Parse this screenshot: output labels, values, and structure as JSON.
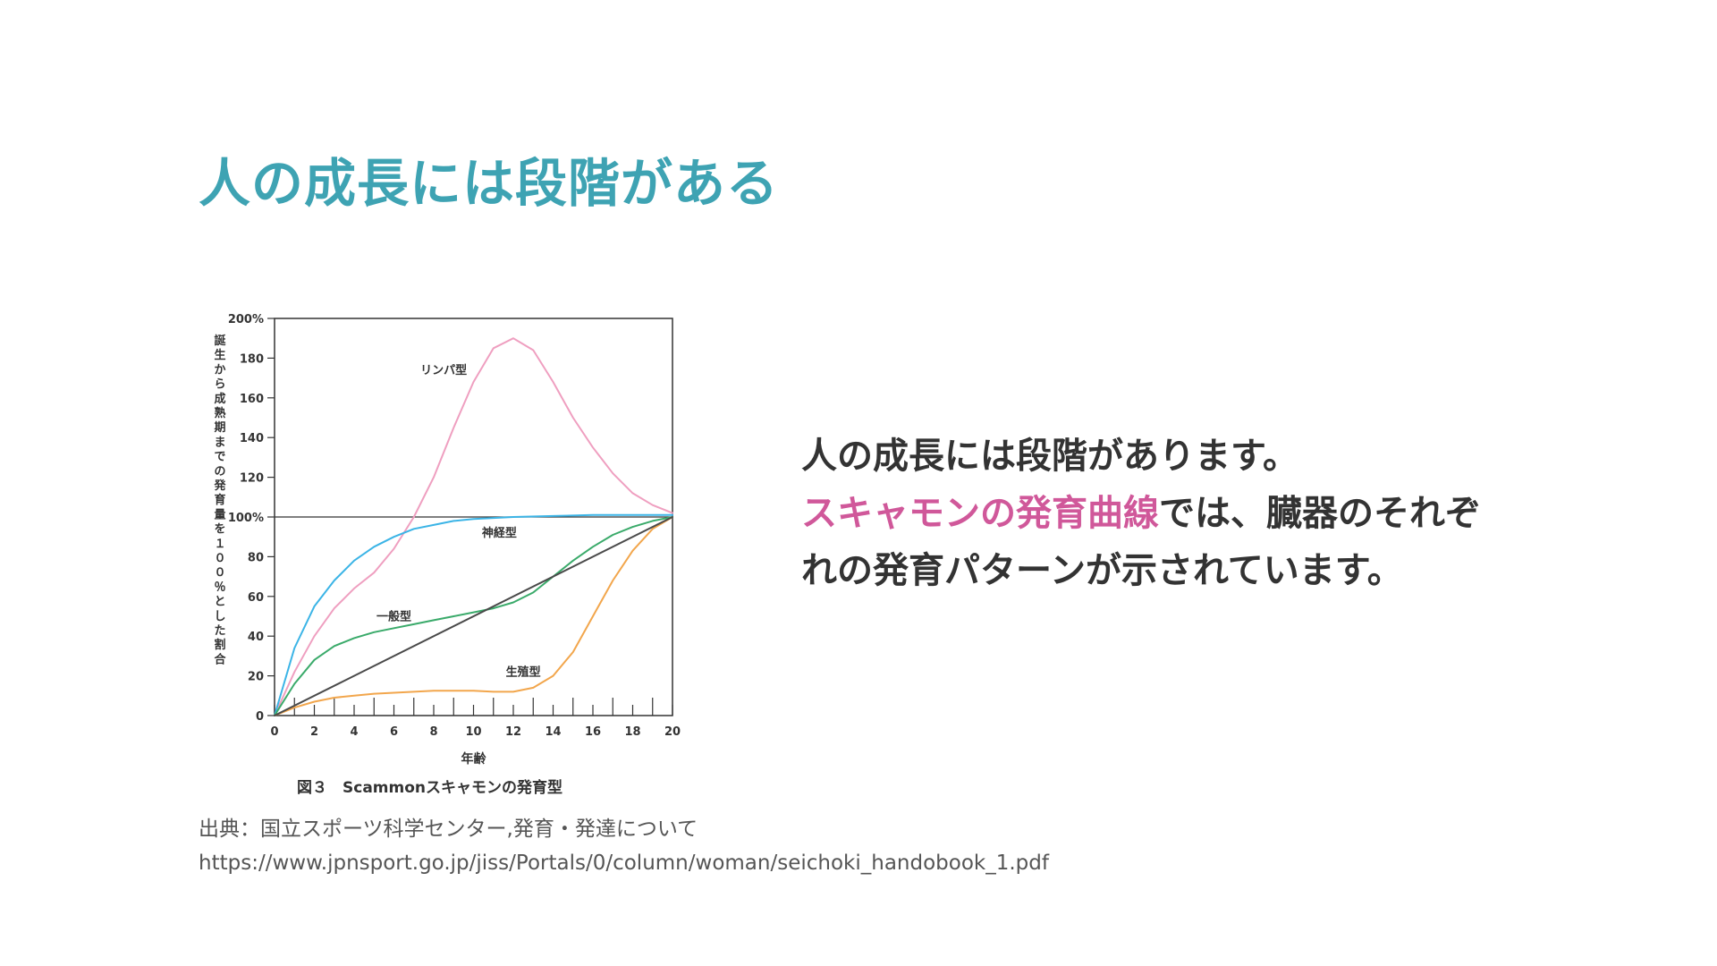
{
  "slide": {
    "title": "人の成長には段階がある"
  },
  "body": {
    "line1": "人の成長には段階があります。",
    "line2_accent": "スキャモンの発育曲線",
    "line2_rest": "では、臓器のそれぞ",
    "line3": "れの発育パターンが示されています。"
  },
  "source": {
    "label": "出典：国立スポーツ科学センター,発育・発達について",
    "url": "https://www.jpnsport.go.jp/jiss/Portals/0/column/woman/seichoki_handobook_1.pdf"
  },
  "colors": {
    "title": "#3ea3b3",
    "accent": "#d0589a",
    "lymph": "#ef9fc0",
    "neural": "#3bb4e6",
    "general": "#3aaa6a",
    "reproductive": "#f2a64c",
    "reference": "#4a4a4a"
  },
  "chart_data": {
    "type": "line",
    "caption": "図３　Scammonスキャモンの発育型",
    "xlabel": "年齢",
    "ylabel": "誕生から成熟期までの発育量を１００％とした割合",
    "xlim": [
      0,
      20
    ],
    "ylim": [
      0,
      200
    ],
    "x_ticks": [
      0,
      2,
      4,
      6,
      8,
      10,
      12,
      14,
      16,
      18,
      20
    ],
    "y_ticks": [
      {
        "value": 0,
        "label": "0"
      },
      {
        "value": 20,
        "label": "20"
      },
      {
        "value": 40,
        "label": "40"
      },
      {
        "value": 60,
        "label": "60"
      },
      {
        "value": 80,
        "label": "80"
      },
      {
        "value": 100,
        "label": "100%"
      },
      {
        "value": 120,
        "label": "120"
      },
      {
        "value": 140,
        "label": "140"
      },
      {
        "value": 160,
        "label": "160"
      },
      {
        "value": 180,
        "label": "180"
      },
      {
        "value": 200,
        "label": "200%"
      }
    ],
    "reference_y": 100,
    "grid": false,
    "series": [
      {
        "name": "リンパ型",
        "color_key": "lymph",
        "x": [
          0,
          1,
          2,
          3,
          4,
          5,
          6,
          7,
          8,
          9,
          10,
          11,
          12,
          13,
          14,
          15,
          16,
          17,
          18,
          19,
          20
        ],
        "y": [
          0,
          22,
          40,
          54,
          64,
          72,
          84,
          100,
          120,
          145,
          168,
          185,
          190,
          184,
          168,
          150,
          135,
          122,
          112,
          106,
          102
        ]
      },
      {
        "name": "神経型",
        "color_key": "neural",
        "x": [
          0,
          1,
          2,
          3,
          4,
          5,
          6,
          7,
          8,
          9,
          10,
          11,
          12,
          14,
          16,
          18,
          20
        ],
        "y": [
          0,
          34,
          55,
          68,
          78,
          85,
          90,
          94,
          96,
          98,
          99,
          99.5,
          100,
          100.5,
          101,
          101,
          101
        ]
      },
      {
        "name": "一般型",
        "color_key": "general",
        "x": [
          0,
          1,
          2,
          3,
          4,
          5,
          6,
          7,
          8,
          9,
          10,
          11,
          12,
          13,
          14,
          15,
          16,
          17,
          18,
          19,
          20
        ],
        "y": [
          0,
          16,
          28,
          35,
          39,
          42,
          44,
          46,
          48,
          50,
          52,
          54,
          57,
          62,
          70,
          78,
          85,
          91,
          95,
          98,
          100
        ]
      },
      {
        "name": "生殖型",
        "color_key": "reproductive",
        "x": [
          0,
          1,
          2,
          3,
          4,
          5,
          6,
          7,
          8,
          9,
          10,
          11,
          12,
          13,
          14,
          15,
          16,
          17,
          18,
          19,
          20
        ],
        "y": [
          0,
          4,
          7,
          9,
          10,
          11,
          11.5,
          12,
          12.5,
          12.5,
          12.5,
          12,
          12,
          14,
          20,
          32,
          50,
          68,
          83,
          94,
          100
        ]
      },
      {
        "color_key": "reference",
        "x": [
          0,
          20
        ],
        "y": [
          0,
          100
        ]
      }
    ],
    "series_labels": [
      {
        "text": "リンパ型",
        "x": 8.5,
        "y": 172
      },
      {
        "text": "神経型",
        "x": 11.3,
        "y": 90
      },
      {
        "text": "一般型",
        "x": 6,
        "y": 48
      },
      {
        "text": "生殖型",
        "x": 12.5,
        "y": 20
      }
    ]
  }
}
